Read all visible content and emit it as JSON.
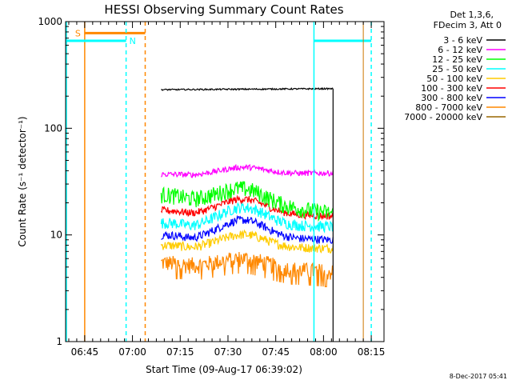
{
  "chart_data": {
    "type": "line",
    "title": "HESSI Observing Summary Count Rates",
    "xlabel": "Start Time (09-Aug-17 06:39:02)",
    "ylabel": "Count Rate (s⁻¹ detector⁻¹)",
    "yscale": "log",
    "xlim_minutes": [
      0,
      100
    ],
    "ylim": [
      1,
      1000
    ],
    "x_tick_labels": [
      "06:45",
      "07:00",
      "07:15",
      "07:30",
      "07:45",
      "08:00",
      "08:15"
    ],
    "x_tick_minutes": [
      6,
      21,
      36,
      51,
      66,
      81,
      96
    ],
    "y_tick_labels": [
      "1",
      "10",
      "100",
      "1000"
    ],
    "y_tick_values": [
      1,
      10,
      100,
      1000
    ],
    "legend_header": [
      "Det 1,3,6,",
      "FDecim 3, Att 0"
    ],
    "data_gap": [
      29,
      94
    ],
    "series": [
      {
        "name": "3 - 6 keV",
        "color": "#000000",
        "values_start_end": [
          230,
          235
        ]
      },
      {
        "name": "6 - 12 keV",
        "color": "#ff00ff",
        "values_start_end": [
          37,
          38
        ]
      },
      {
        "name": "12 - 25 keV",
        "color": "#00ff00",
        "values_start_end": [
          24,
          16
        ]
      },
      {
        "name": "25 - 50 keV",
        "color": "#00ffff",
        "values_start_end": [
          13,
          12
        ]
      },
      {
        "name": "50 - 100 keV",
        "color": "#ffcc00",
        "values_start_end": [
          8,
          7.5
        ]
      },
      {
        "name": "100 - 300 keV",
        "color": "#ff0000",
        "values_start_end": [
          17,
          15
        ]
      },
      {
        "name": "300 - 800 keV",
        "color": "#0000ff",
        "values_start_end": [
          10,
          9
        ]
      },
      {
        "name": "800 - 7000 keV",
        "color": "#ff8800",
        "values_start_end": [
          5.5,
          4.5
        ]
      },
      {
        "name": "7000 - 20000 keV",
        "color": "#996600",
        "values_start_end": null
      }
    ],
    "annotations": [
      {
        "text": "S",
        "color": "#ff8800"
      },
      {
        "text": "N",
        "color": "#00ffff"
      }
    ]
  },
  "footer_timestamp": "8-Dec-2017 05:41"
}
